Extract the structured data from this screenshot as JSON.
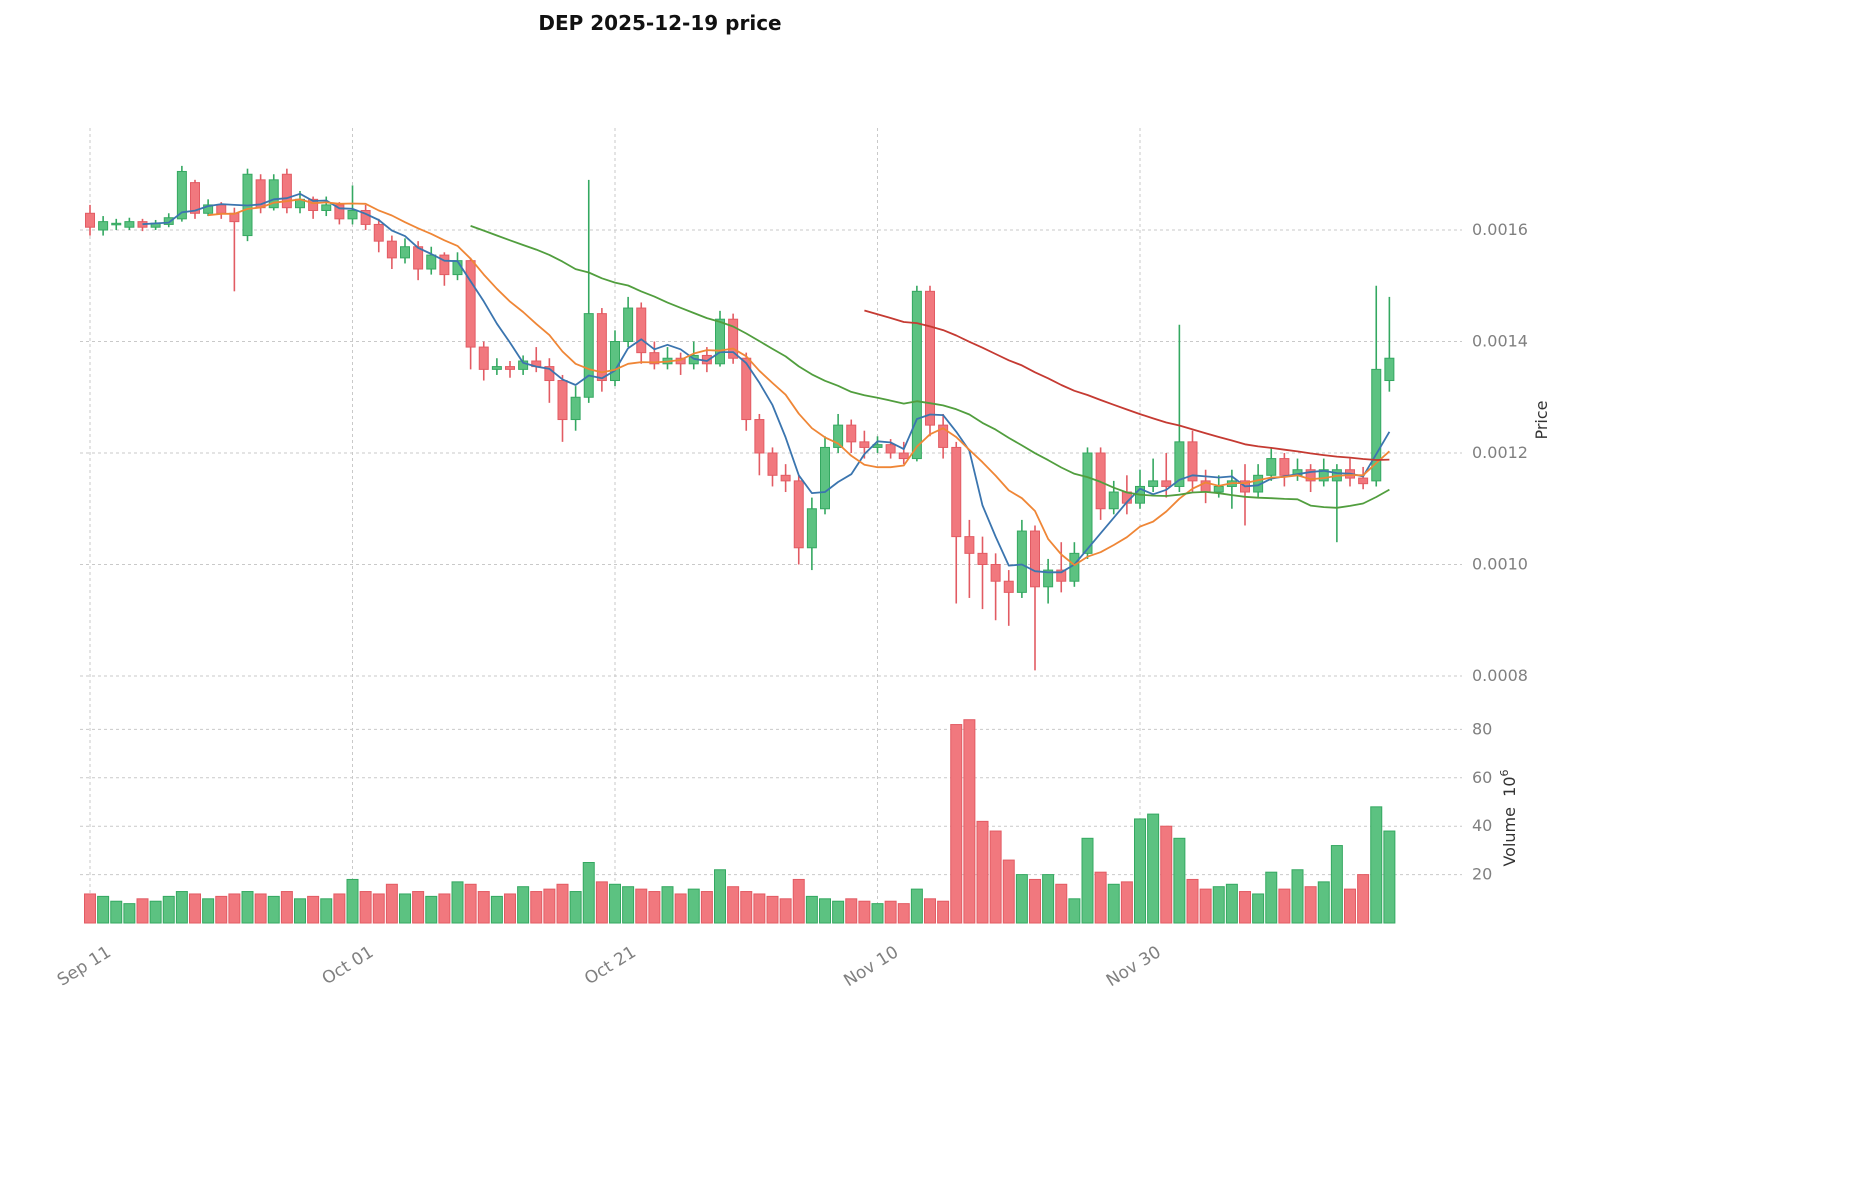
{
  "chart_data": {
    "type": "candlestick",
    "title": "DEP  2025-12-19  price",
    "price_unit": 0.0001,
    "volume_unit": 1000000,
    "x_ticks": [
      {
        "index": 0,
        "label": "Sep 11"
      },
      {
        "index": 20,
        "label": "Oct 01"
      },
      {
        "index": 40,
        "label": "Oct 21"
      },
      {
        "index": 60,
        "label": "Nov 10"
      },
      {
        "index": 80,
        "label": "Nov 30"
      }
    ],
    "price_axis": {
      "label": "Price",
      "ticks": [
        {
          "v": 8,
          "label": "0.0008"
        },
        {
          "v": 10,
          "label": "0.0010"
        },
        {
          "v": 12,
          "label": "0.0012"
        },
        {
          "v": 14,
          "label": "0.0014"
        },
        {
          "v": 16,
          "label": "0.0016"
        }
      ]
    },
    "volume_axis": {
      "label": "Volume",
      "unit_base": "10",
      "unit_exp": "6",
      "ticks": [
        {
          "v": 20,
          "label": "20"
        },
        {
          "v": 40,
          "label": "40"
        },
        {
          "v": 60,
          "label": "60"
        },
        {
          "v": 80,
          "label": "80"
        }
      ]
    },
    "moving_averages": [
      {
        "period": 5,
        "color": "#3b75af"
      },
      {
        "period": 10,
        "color": "#ef8636"
      },
      {
        "period": 30,
        "color": "#519e3e"
      },
      {
        "period": 60,
        "color": "#c53a32"
      }
    ],
    "colors": {
      "up": "#5cc281",
      "up_edge": "#34a861",
      "down": "#f1787e",
      "down_edge": "#e25b63",
      "grid": "#c9c9c9",
      "tick_text": "#808080",
      "axis_text": "#333333",
      "background": "#ffffff"
    },
    "ohlc": [
      [
        16.3,
        16.45,
        15.9,
        16.05
      ],
      [
        16.0,
        16.25,
        15.9,
        16.15
      ],
      [
        16.1,
        16.2,
        16.0,
        16.12
      ],
      [
        16.05,
        16.22,
        16.0,
        16.15
      ],
      [
        16.15,
        16.2,
        15.98,
        16.05
      ],
      [
        16.05,
        16.18,
        16.0,
        16.12
      ],
      [
        16.1,
        16.3,
        16.05,
        16.22
      ],
      [
        16.2,
        17.15,
        16.15,
        17.05
      ],
      [
        16.85,
        16.9,
        16.2,
        16.3
      ],
      [
        16.3,
        16.55,
        16.25,
        16.45
      ],
      [
        16.45,
        16.5,
        16.2,
        16.3
      ],
      [
        16.3,
        16.4,
        14.9,
        16.15
      ],
      [
        15.9,
        17.1,
        15.8,
        17.0
      ],
      [
        16.9,
        17.0,
        16.3,
        16.4
      ],
      [
        16.4,
        17.0,
        16.35,
        16.9
      ],
      [
        17.0,
        17.1,
        16.3,
        16.4
      ],
      [
        16.4,
        16.7,
        16.3,
        16.55
      ],
      [
        16.55,
        16.6,
        16.2,
        16.35
      ],
      [
        16.35,
        16.6,
        16.25,
        16.45
      ],
      [
        16.45,
        16.5,
        16.1,
        16.2
      ],
      [
        16.2,
        16.8,
        16.1,
        16.35
      ],
      [
        16.35,
        16.45,
        16.0,
        16.1
      ],
      [
        16.1,
        16.2,
        15.6,
        15.8
      ],
      [
        15.8,
        15.9,
        15.3,
        15.5
      ],
      [
        15.5,
        15.85,
        15.4,
        15.7
      ],
      [
        15.7,
        15.8,
        15.1,
        15.3
      ],
      [
        15.3,
        15.7,
        15.2,
        15.55
      ],
      [
        15.55,
        15.6,
        15.0,
        15.2
      ],
      [
        15.2,
        15.6,
        15.1,
        15.45
      ],
      [
        15.45,
        15.5,
        13.5,
        13.9
      ],
      [
        13.9,
        14.0,
        13.3,
        13.5
      ],
      [
        13.5,
        13.7,
        13.4,
        13.55
      ],
      [
        13.55,
        13.65,
        13.35,
        13.5
      ],
      [
        13.5,
        13.75,
        13.4,
        13.65
      ],
      [
        13.65,
        13.9,
        13.45,
        13.55
      ],
      [
        13.55,
        13.7,
        12.9,
        13.3
      ],
      [
        13.3,
        13.4,
        12.2,
        12.6
      ],
      [
        12.6,
        13.2,
        12.4,
        13.0
      ],
      [
        13.0,
        16.9,
        12.9,
        14.5
      ],
      [
        14.5,
        14.6,
        13.1,
        13.3
      ],
      [
        13.3,
        14.2,
        13.2,
        14.0
      ],
      [
        14.0,
        14.8,
        13.9,
        14.6
      ],
      [
        14.6,
        14.7,
        13.6,
        13.8
      ],
      [
        13.8,
        14.0,
        13.5,
        13.6
      ],
      [
        13.6,
        13.9,
        13.5,
        13.7
      ],
      [
        13.7,
        13.8,
        13.4,
        13.6
      ],
      [
        13.6,
        14.0,
        13.5,
        13.75
      ],
      [
        13.75,
        13.9,
        13.45,
        13.6
      ],
      [
        13.6,
        14.55,
        13.55,
        14.4
      ],
      [
        14.4,
        14.5,
        13.6,
        13.7
      ],
      [
        13.7,
        13.8,
        12.4,
        12.6
      ],
      [
        12.6,
        12.7,
        11.6,
        12.0
      ],
      [
        12.0,
        12.1,
        11.4,
        11.6
      ],
      [
        11.6,
        11.8,
        11.3,
        11.5
      ],
      [
        11.5,
        11.6,
        10.0,
        10.3
      ],
      [
        10.3,
        11.2,
        9.9,
        11.0
      ],
      [
        11.0,
        12.3,
        10.9,
        12.1
      ],
      [
        12.1,
        12.7,
        12.0,
        12.5
      ],
      [
        12.5,
        12.6,
        12.0,
        12.2
      ],
      [
        12.2,
        12.4,
        11.9,
        12.1
      ],
      [
        12.1,
        12.3,
        12.0,
        12.15
      ],
      [
        12.15,
        12.25,
        11.9,
        12.0
      ],
      [
        12.0,
        12.2,
        11.8,
        11.9
      ],
      [
        11.9,
        15.0,
        11.85,
        14.9
      ],
      [
        14.9,
        15.0,
        12.3,
        12.5
      ],
      [
        12.5,
        12.7,
        11.9,
        12.1
      ],
      [
        12.1,
        12.2,
        9.3,
        10.5
      ],
      [
        10.5,
        10.8,
        9.4,
        10.2
      ],
      [
        10.2,
        10.5,
        9.2,
        10.0
      ],
      [
        10.0,
        10.2,
        9.0,
        9.7
      ],
      [
        9.7,
        9.9,
        8.9,
        9.5
      ],
      [
        9.5,
        10.8,
        9.4,
        10.6
      ],
      [
        10.6,
        10.7,
        8.1,
        9.6
      ],
      [
        9.6,
        10.1,
        9.3,
        9.9
      ],
      [
        9.9,
        10.4,
        9.5,
        9.7
      ],
      [
        9.7,
        10.4,
        9.6,
        10.2
      ],
      [
        10.2,
        12.1,
        10.1,
        12.0
      ],
      [
        12.0,
        12.1,
        10.8,
        11.0
      ],
      [
        11.0,
        11.5,
        10.9,
        11.3
      ],
      [
        11.3,
        11.6,
        10.9,
        11.1
      ],
      [
        11.1,
        11.7,
        11.0,
        11.4
      ],
      [
        11.4,
        11.9,
        11.3,
        11.5
      ],
      [
        11.5,
        12.0,
        11.2,
        11.4
      ],
      [
        11.4,
        14.3,
        11.3,
        12.2
      ],
      [
        12.2,
        12.4,
        11.3,
        11.5
      ],
      [
        11.5,
        11.7,
        11.1,
        11.3
      ],
      [
        11.3,
        11.6,
        11.2,
        11.4
      ],
      [
        11.4,
        11.7,
        11.0,
        11.5
      ],
      [
        11.5,
        11.8,
        10.7,
        11.3
      ],
      [
        11.3,
        11.8,
        11.2,
        11.6
      ],
      [
        11.6,
        12.1,
        11.5,
        11.9
      ],
      [
        11.9,
        12.0,
        11.4,
        11.6
      ],
      [
        11.6,
        11.9,
        11.5,
        11.7
      ],
      [
        11.7,
        11.8,
        11.3,
        11.5
      ],
      [
        11.5,
        11.9,
        11.4,
        11.7
      ],
      [
        11.5,
        11.8,
        10.4,
        11.7
      ],
      [
        11.7,
        11.9,
        11.4,
        11.55
      ],
      [
        11.55,
        11.75,
        11.35,
        11.45
      ],
      [
        11.5,
        15.0,
        11.4,
        13.5
      ],
      [
        13.3,
        14.8,
        13.1,
        13.7
      ]
    ],
    "volume": [
      12,
      11,
      9,
      8,
      10,
      9,
      11,
      13,
      12,
      10,
      11,
      12,
      13,
      12,
      11,
      13,
      10,
      11,
      10,
      12,
      18,
      13,
      12,
      16,
      12,
      13,
      11,
      12,
      17,
      16,
      13,
      11,
      12,
      15,
      13,
      14,
      16,
      13,
      25,
      17,
      16,
      15,
      14,
      13,
      15,
      12,
      14,
      13,
      22,
      15,
      13,
      12,
      11,
      10,
      18,
      11,
      10,
      9,
      10,
      9,
      8,
      9,
      8,
      14,
      10,
      9,
      82,
      84,
      42,
      38,
      26,
      20,
      18,
      20,
      16,
      10,
      35,
      21,
      16,
      17,
      43,
      45,
      40,
      35,
      18,
      14,
      15,
      16,
      13,
      12,
      21,
      14,
      22,
      15,
      17,
      32,
      14,
      20,
      48,
      38
    ]
  }
}
